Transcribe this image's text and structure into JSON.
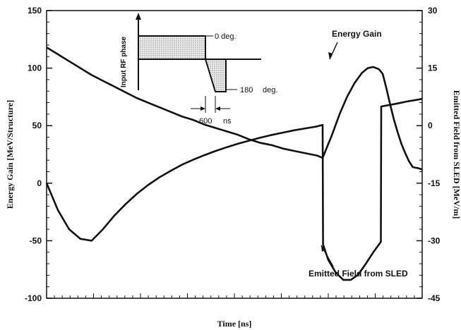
{
  "chart_data": {
    "type": "line",
    "title": "",
    "xlabel": "Time [ns]",
    "ylabel": "Energy Gain [MeV/Structure]",
    "y2label": "Emitted Field from SLED [MeV/m]",
    "ylim": [
      -100,
      150
    ],
    "y2lim": [
      -45,
      30
    ],
    "yticks": [
      "150",
      "100",
      "50",
      "0",
      "-50",
      "-100"
    ],
    "y2ticks": [
      "30",
      "15",
      "0",
      "-15",
      "-30",
      "-45"
    ],
    "grid": false,
    "series": [
      {
        "name": "Energy Gain",
        "axis": "left",
        "points": [
          [
            0,
            118
          ],
          [
            0.03,
            112
          ],
          [
            0.06,
            106
          ],
          [
            0.09,
            100
          ],
          [
            0.12,
            94
          ],
          [
            0.15,
            89
          ],
          [
            0.18,
            84
          ],
          [
            0.21,
            79
          ],
          [
            0.24,
            74
          ],
          [
            0.27,
            70
          ],
          [
            0.3,
            66
          ],
          [
            0.33,
            62
          ],
          [
            0.36,
            58
          ],
          [
            0.39,
            55
          ],
          [
            0.42,
            51
          ],
          [
            0.45,
            48
          ],
          [
            0.48,
            45
          ],
          [
            0.51,
            42
          ],
          [
            0.54,
            38
          ],
          [
            0.57,
            35
          ],
          [
            0.6,
            33
          ],
          [
            0.63,
            30
          ],
          [
            0.66,
            28
          ],
          [
            0.69,
            26
          ],
          [
            0.72,
            24
          ],
          [
            0.735,
            22
          ],
          [
            0.76,
            42
          ],
          [
            0.78,
            60
          ],
          [
            0.8,
            75
          ],
          [
            0.82,
            87
          ],
          [
            0.84,
            96
          ],
          [
            0.855,
            100
          ],
          [
            0.87,
            101
          ],
          [
            0.885,
            99
          ],
          [
            0.895,
            95
          ],
          [
            0.905,
            82
          ],
          [
            0.915,
            68
          ],
          [
            0.925,
            55
          ],
          [
            0.935,
            44
          ],
          [
            0.945,
            34
          ],
          [
            0.955,
            26
          ],
          [
            0.965,
            19
          ],
          [
            0.975,
            14
          ],
          [
            0.99,
            13
          ],
          [
            1.0,
            12
          ]
        ]
      },
      {
        "name": "Emitted Field from SLED",
        "axis": "right",
        "points": [
          [
            0,
            -15
          ],
          [
            0.03,
            -22
          ],
          [
            0.06,
            -27
          ],
          [
            0.09,
            -29.5
          ],
          [
            0.12,
            -30
          ],
          [
            0.15,
            -27
          ],
          [
            0.18,
            -23.5
          ],
          [
            0.21,
            -20.5
          ],
          [
            0.24,
            -17.8
          ],
          [
            0.27,
            -15.5
          ],
          [
            0.3,
            -13.5
          ],
          [
            0.33,
            -11.8
          ],
          [
            0.36,
            -10.2
          ],
          [
            0.39,
            -8.9
          ],
          [
            0.42,
            -7.7
          ],
          [
            0.45,
            -6.6
          ],
          [
            0.48,
            -5.6
          ],
          [
            0.51,
            -4.7
          ],
          [
            0.54,
            -3.9
          ],
          [
            0.57,
            -3.1
          ],
          [
            0.6,
            -2.4
          ],
          [
            0.63,
            -1.8
          ],
          [
            0.66,
            -1.2
          ],
          [
            0.69,
            -0.7
          ],
          [
            0.72,
            -0.2
          ],
          [
            0.735,
            0.2
          ],
          [
            0.736,
            -31
          ],
          [
            0.75,
            -35
          ],
          [
            0.77,
            -38.3
          ],
          [
            0.79,
            -40.2
          ],
          [
            0.81,
            -40.2
          ],
          [
            0.83,
            -38.8
          ],
          [
            0.85,
            -36
          ],
          [
            0.87,
            -33
          ],
          [
            0.89,
            -30.3
          ],
          [
            0.89,
            -29.5
          ],
          [
            0.891,
            5
          ],
          [
            0.93,
            5.7
          ],
          [
            0.96,
            6.3
          ],
          [
            0.99,
            6.8
          ],
          [
            1.0,
            7.0
          ]
        ]
      }
    ],
    "annotations": [
      "Energy Gain",
      "Emitted Field from SLED"
    ],
    "inset": {
      "ylabel": "Input RF phase",
      "labels": [
        "0 deg.",
        "180",
        "deg.",
        "600",
        "ns"
      ]
    }
  }
}
